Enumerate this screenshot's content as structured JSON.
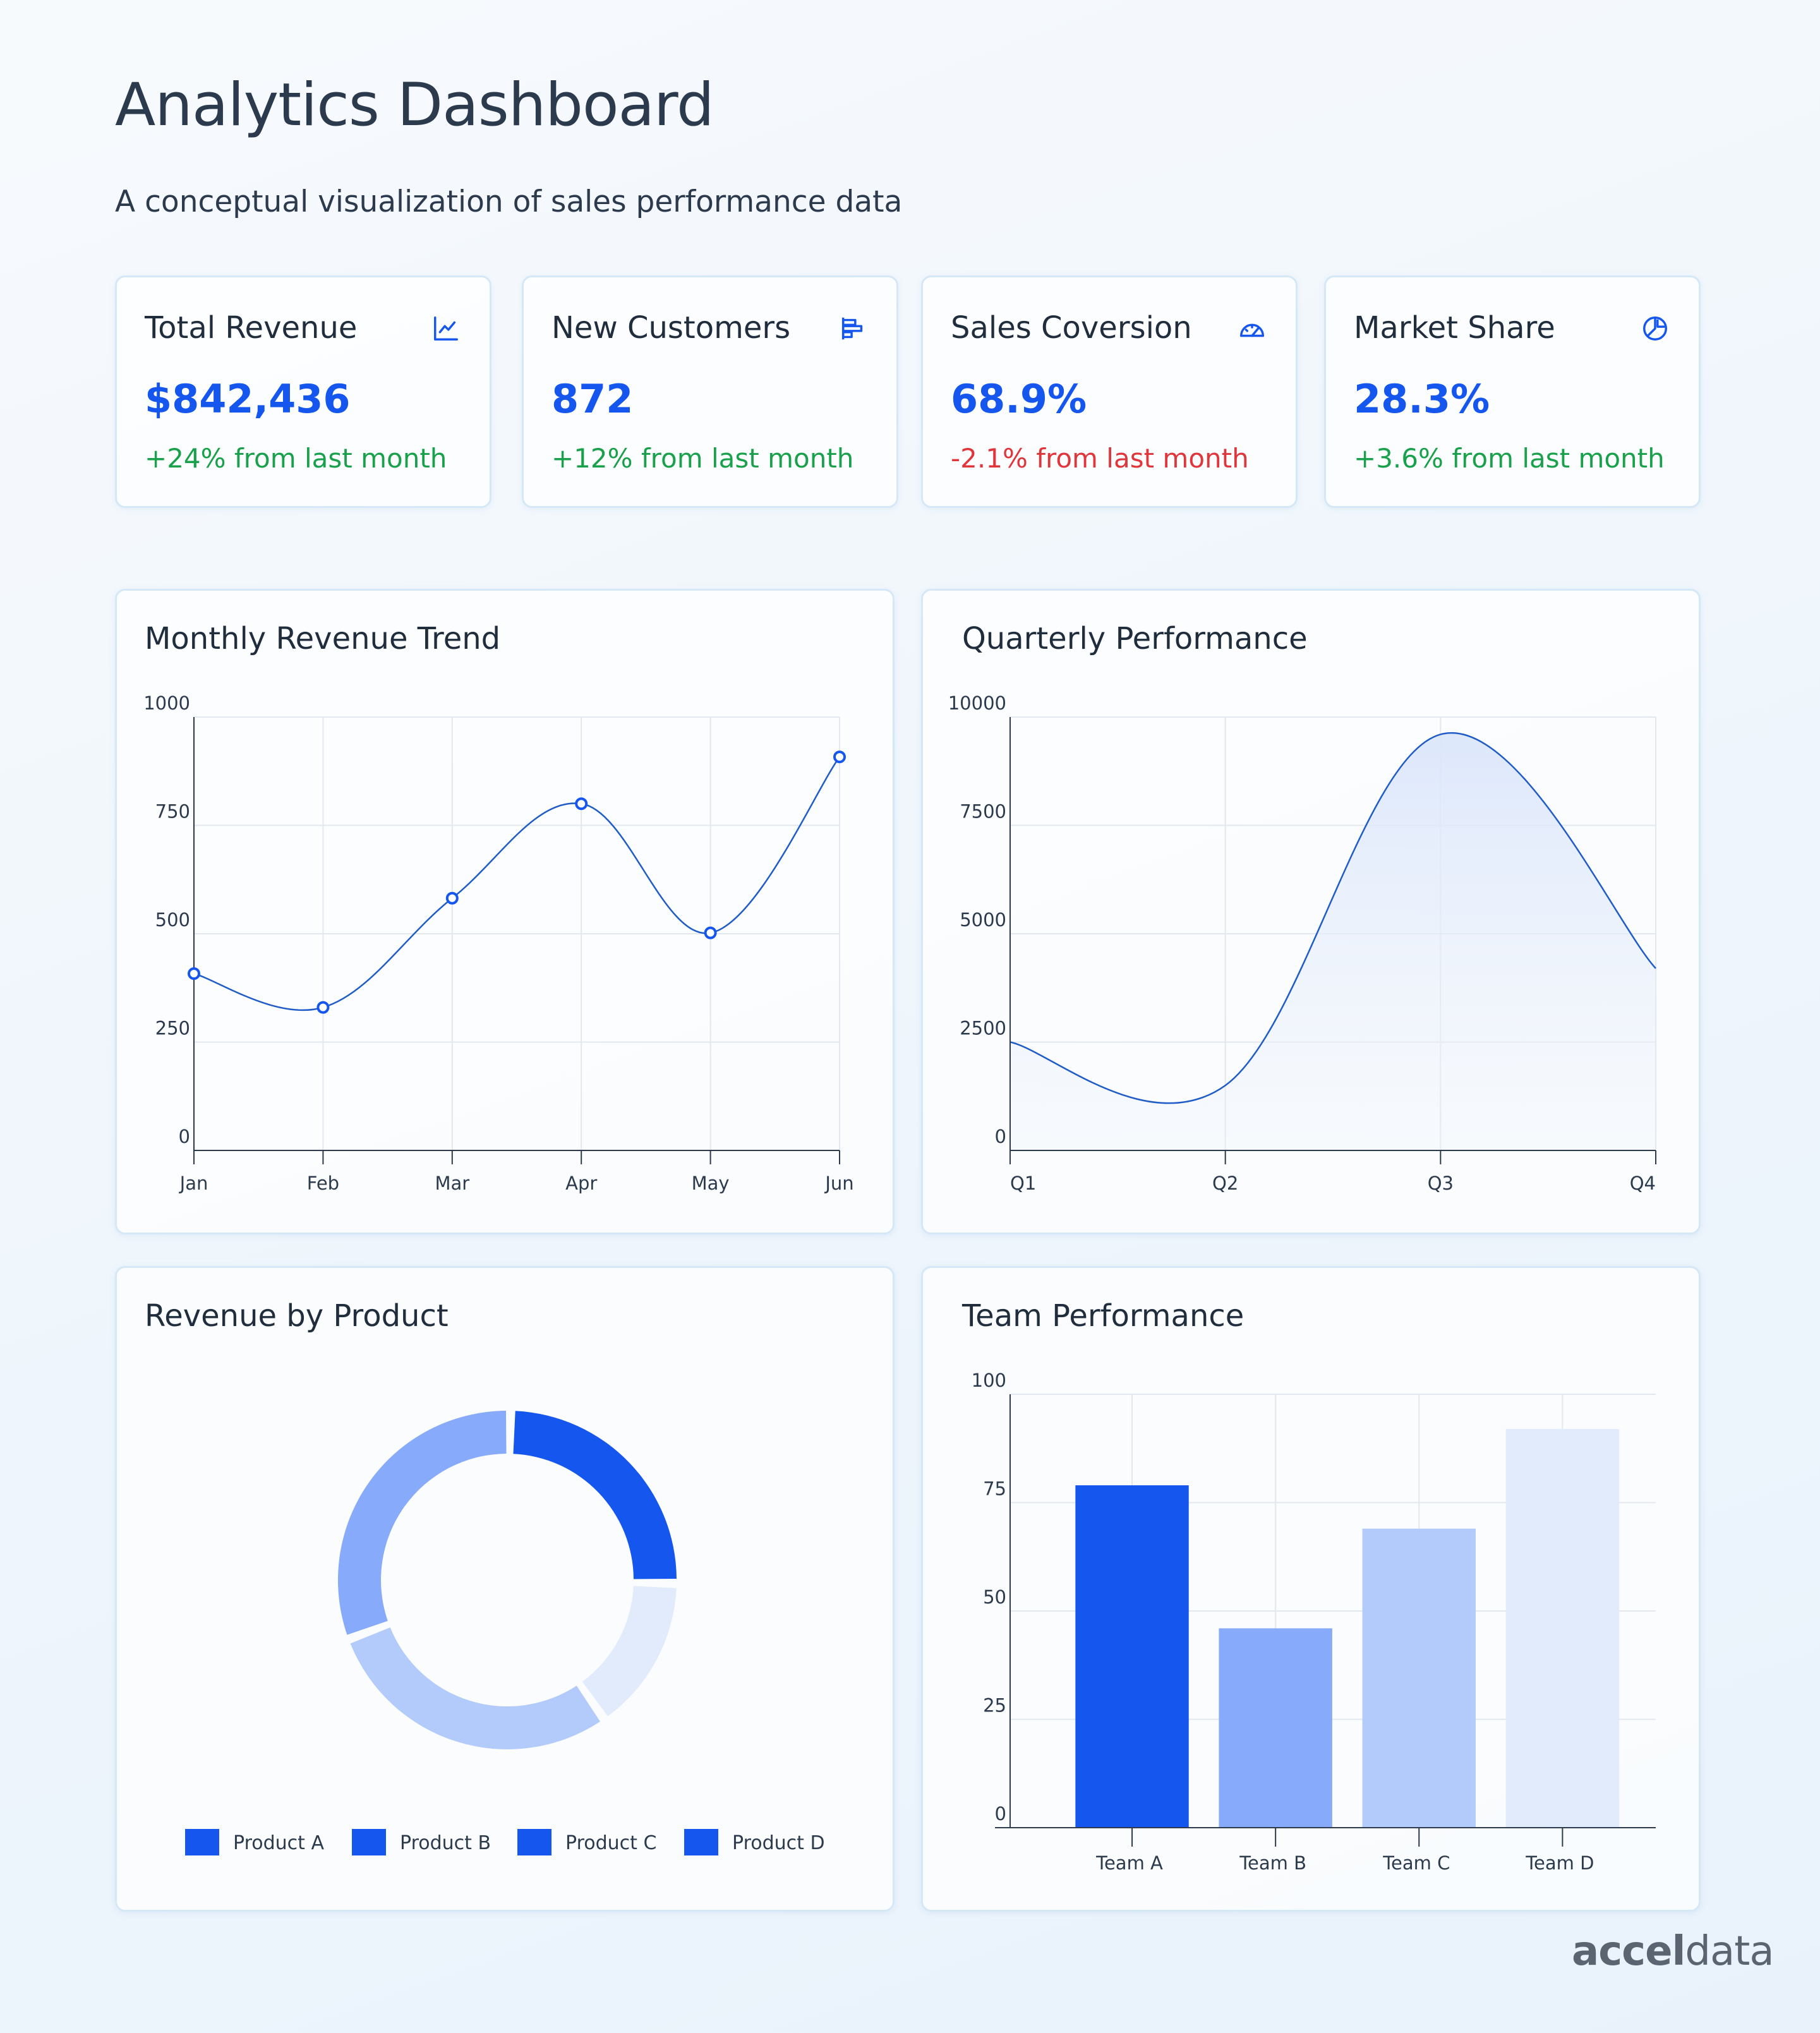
{
  "header": {
    "title": "Analytics Dashboard",
    "subtitle": "A conceptual visualization of sales performance data"
  },
  "stats": [
    {
      "label": "Total Revenue",
      "value": "$842,436",
      "change": "+24% from last month",
      "trend": "up",
      "icon": "line-chart-icon"
    },
    {
      "label": "New Customers",
      "value": "872",
      "change": "+12% from last month",
      "trend": "up",
      "icon": "bar-chart-horizontal-icon"
    },
    {
      "label": "Sales Coversion",
      "value": "68.9%",
      "change": "-2.1% from last month",
      "trend": "down",
      "icon": "gauge-icon"
    },
    {
      "label": "Market Share",
      "value": "28.3%",
      "change": "+3.6% from last month",
      "trend": "up",
      "icon": "pie-chart-icon"
    }
  ],
  "colors": {
    "accent": "#1557ee",
    "positive": "#18a14a",
    "negative": "#e0353b",
    "line": "#1f5cc8",
    "product_a": "#1557ee",
    "product_b": "#87aafa",
    "product_c": "#b3cbfa",
    "product_d": "#e2ebfc"
  },
  "chart_data": [
    {
      "id": "monthly",
      "type": "line",
      "title": "Monthly Revenue Trend",
      "categories": [
        "Jan",
        "Feb",
        "Mar",
        "Apr",
        "May",
        "Jun"
      ],
      "values": [
        408,
        330,
        582,
        800,
        502,
        908
      ],
      "ylim": [
        0,
        1000
      ],
      "yticks": [
        0,
        250,
        500,
        750,
        1000
      ],
      "grid": true,
      "markers": true
    },
    {
      "id": "quarterly",
      "type": "area",
      "title": "Quarterly Performance",
      "categories": [
        "Q1",
        "Q2",
        "Q3",
        "Q4"
      ],
      "values": [
        2500,
        1500,
        9600,
        4200
      ],
      "ylim": [
        0,
        10000
      ],
      "yticks": [
        0,
        2500,
        5000,
        7500,
        10000
      ],
      "grid": true
    },
    {
      "id": "products",
      "type": "pie",
      "title": "Revenue by Product",
      "categories": [
        "Product A",
        "Product B",
        "Product C",
        "Product D"
      ],
      "values": [
        25,
        15,
        29,
        31
      ],
      "colors": [
        "#1557ee",
        "#e2ebfc",
        "#b3cbfa",
        "#87aafa"
      ],
      "legend_colors": [
        "#1557ee",
        "#1557ee",
        "#1557ee",
        "#1557ee"
      ],
      "legend": "bottom"
    },
    {
      "id": "teams",
      "type": "bar",
      "title": "Team Performance",
      "categories": [
        "Team A",
        "Team B",
        "Team C",
        "Team D"
      ],
      "values": [
        79,
        46,
        69,
        92
      ],
      "colors": [
        "#1557ee",
        "#87aafa",
        "#b3cbfa",
        "#e2ebfc"
      ],
      "ylim": [
        0,
        100
      ],
      "yticks": [
        0,
        25,
        50,
        75,
        100
      ],
      "grid": true
    }
  ],
  "brand": {
    "part1": "accel",
    "part2": "data"
  }
}
